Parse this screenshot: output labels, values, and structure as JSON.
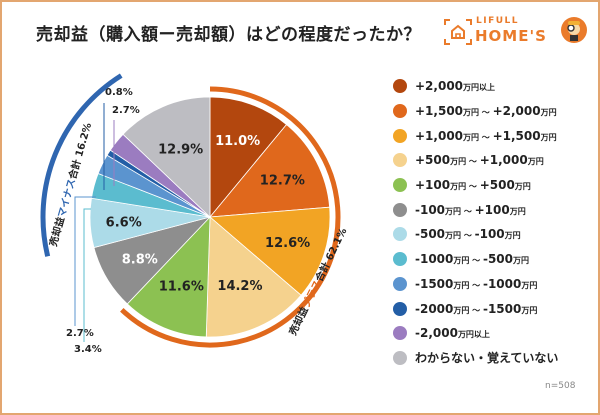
{
  "title": "売却益（購入額ー売却額）はどの程度だったか？",
  "logo": {
    "small": "LIFULL",
    "big": "HOME'S"
  },
  "sample": "n=508",
  "chart_data": {
    "type": "pie",
    "title": "売却益（購入額ー売却額）はどの程度だったか？",
    "categories": [
      "+2,000万円以上",
      "+1,500万円 ～ +2,000万円",
      "+1,000万円 ～ +1,500万円",
      "+500万円 ～ +1,000万円",
      "+100万円 ～ +500万円",
      "-100万円 ～ +100万円",
      "-500万円 ～ -100万円",
      "-1000万円 ～ -500万円",
      "-1500万円 ～ -1000万円",
      "-2000万円 ～ -1500万円",
      "-2,000万円以上",
      "わからない・覚えていない"
    ],
    "values": [
      11.0,
      12.7,
      12.6,
      14.2,
      11.6,
      8.8,
      6.6,
      3.4,
      2.7,
      0.8,
      2.7,
      12.9
    ],
    "labels": [
      "11.0%",
      "12.7%",
      "12.6%",
      "14.2%",
      "11.6%",
      "8.8%",
      "6.6%",
      "3.4%",
      "2.7%",
      "0.8%",
      "2.7%",
      "12.9%"
    ],
    "colors": [
      "#b3470e",
      "#e0681c",
      "#f2a424",
      "#f5d28e",
      "#8cc152",
      "#8e8e8e",
      "#acdbe8",
      "#5bbccf",
      "#5b94cf",
      "#235ea6",
      "#9b7cc0",
      "#bdbdc2"
    ],
    "label_colors": [
      "#ffffff",
      "#222222",
      "#222222",
      "#222222",
      "#222222",
      "#ffffff",
      "#222222",
      "#222222",
      "#222222",
      "#222222",
      "#222222",
      "#222222"
    ],
    "legend_placement": "right",
    "groups": [
      {
        "prefix": "売却益",
        "highlight": "プラス",
        "suffix": "合計 62.1%",
        "color": "#e0681c"
      },
      {
        "prefix": "売却益",
        "highlight": "マイナス",
        "suffix": "合計 16.2%",
        "color": "#2f66b0"
      }
    ]
  },
  "legend": [
    {
      "main": "+2,000",
      "unit": "万円以上",
      "main2": "",
      "unit2": ""
    },
    {
      "main": "+1,500",
      "unit": "万円 ～ ",
      "main2": "+2,000",
      "unit2": "万円"
    },
    {
      "main": "+1,000",
      "unit": "万円 ～ ",
      "main2": "+1,500",
      "unit2": "万円"
    },
    {
      "main": "+500",
      "unit": "万円 ～ ",
      "main2": "+1,000",
      "unit2": "万円"
    },
    {
      "main": "+100",
      "unit": "万円 ～ ",
      "main2": "+500",
      "unit2": "万円"
    },
    {
      "main": "-100",
      "unit": "万円 ～ ",
      "main2": "+100",
      "unit2": "万円"
    },
    {
      "main": "-500",
      "unit": "万円 ～ ",
      "main2": "-100",
      "unit2": "万円"
    },
    {
      "main": "-1000",
      "unit": "万円 ～ ",
      "main2": "-500",
      "unit2": "万円"
    },
    {
      "main": "-1500",
      "unit": "万円 ～ ",
      "main2": "-1000",
      "unit2": "万円"
    },
    {
      "main": "-2000",
      "unit": "万円 ～ ",
      "main2": "-1500",
      "unit2": "万円"
    },
    {
      "main": "-2,000",
      "unit": "万円以上",
      "main2": "",
      "unit2": ""
    },
    {
      "main": "わからない・覚えていない",
      "unit": "",
      "main2": "",
      "unit2": ""
    }
  ]
}
